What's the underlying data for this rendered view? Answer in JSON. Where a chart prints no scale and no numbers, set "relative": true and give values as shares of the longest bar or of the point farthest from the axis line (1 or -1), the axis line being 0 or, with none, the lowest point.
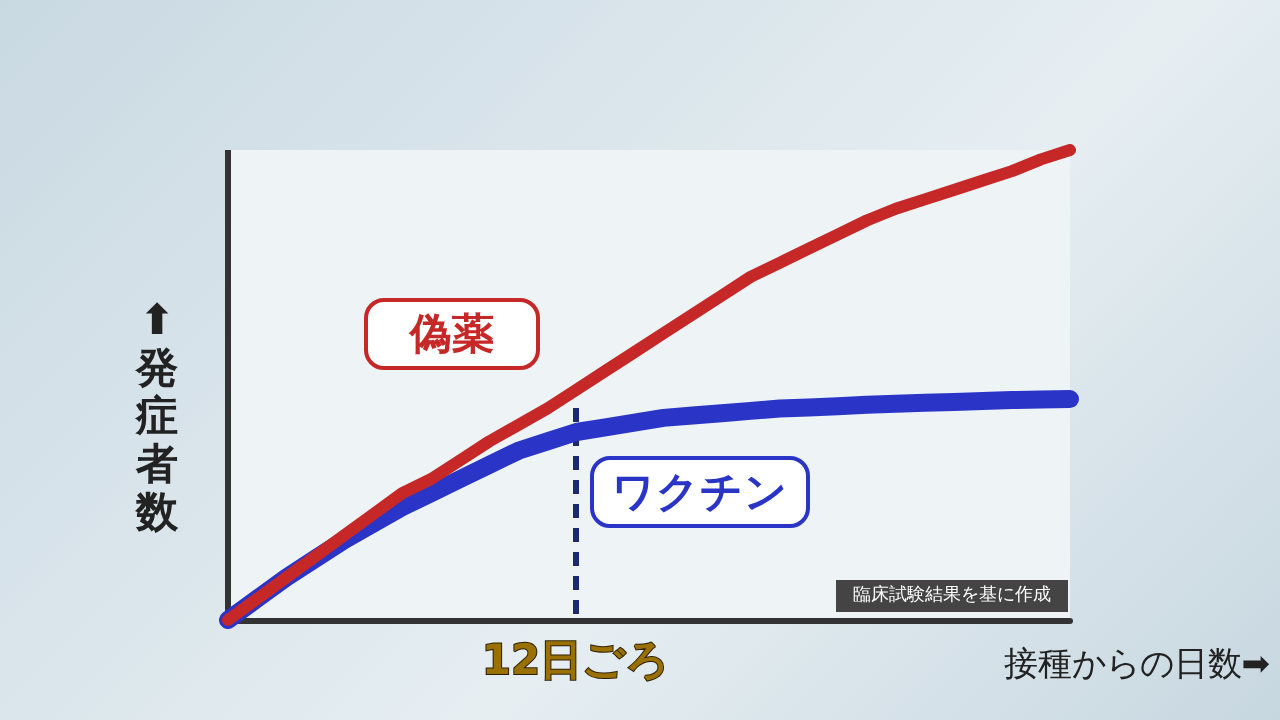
{
  "chart_data": {
    "type": "line",
    "relative": true,
    "xlabel": "接種からの日数➡",
    "ylabel": "⬆発症者数",
    "categories": [
      null,
      null,
      null,
      null,
      null,
      null,
      null,
      null,
      null,
      null,
      null,
      null,
      null,
      null,
      null,
      null,
      null,
      null,
      null,
      null,
      null,
      null,
      null,
      null,
      null,
      null,
      null,
      null,
      null,
      null
    ],
    "annotations": [
      "12日ごろ",
      "臨床試験結果を基に作成"
    ],
    "legend": false,
    "grid": false,
    "marker": "none",
    "line_style": "solid",
    "series": [
      {
        "name": "偽薬",
        "color": "#c62828",
        "values": [
          0,
          0.045,
          0.09,
          0.135,
          0.18,
          0.225,
          0.27,
          0.3,
          0.34,
          0.38,
          0.415,
          0.45,
          0.49,
          0.53,
          0.57,
          0.61,
          0.65,
          0.69,
          0.73,
          0.76,
          0.79,
          0.82,
          0.85,
          0.875,
          0.895,
          0.915,
          0.935,
          0.955,
          0.98,
          1
        ]
      },
      {
        "name": "ワクチン",
        "color": "#2a35c8",
        "values": [
          0,
          0.045,
          0.09,
          0.13,
          0.17,
          0.205,
          0.24,
          0.27,
          0.3,
          0.33,
          0.36,
          0.38,
          0.4,
          0.41,
          0.42,
          0.43,
          0.435,
          0.44,
          0.445,
          0.45,
          0.452,
          0.455,
          0.458,
          0.46,
          0.462,
          0.464,
          0.466,
          0.468,
          0.469,
          0.47
        ]
      }
    ]
  }
}
